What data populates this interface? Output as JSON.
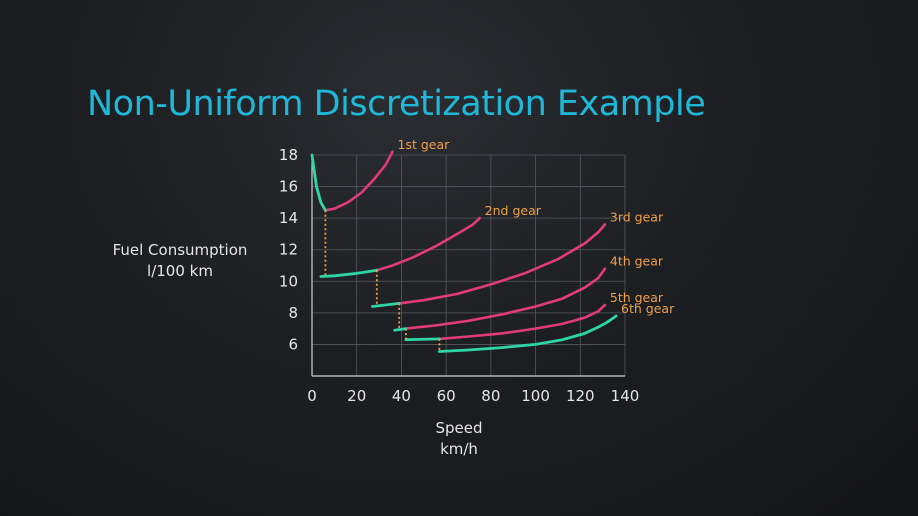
{
  "title": "Non-Uniform Discretization Example",
  "chart_data": {
    "type": "line",
    "ylabel": [
      "Fuel Consumption",
      "l/100 km"
    ],
    "xlabel": [
      "Speed",
      "km/h"
    ],
    "xlim": [
      0,
      140
    ],
    "ylim": [
      4,
      18
    ],
    "xticks": [
      0,
      20,
      40,
      60,
      80,
      100,
      120,
      140
    ],
    "yticks": [
      6,
      8,
      10,
      12,
      14,
      16,
      18
    ],
    "grid": true,
    "colors": {
      "active": "#e23c78",
      "optimal": "#2ed6a6",
      "marker": "#f0a04b",
      "grid": "#55595e"
    },
    "series": [
      {
        "name": "1st gear",
        "x": [
          0,
          2,
          4,
          6,
          10,
          16,
          22,
          28,
          33,
          36
        ],
        "y": [
          18.0,
          16.0,
          15.0,
          14.5,
          14.6,
          15.0,
          15.6,
          16.5,
          17.4,
          18.2
        ],
        "optimal_until": 6
      },
      {
        "name": "2nd gear",
        "x": [
          4,
          10,
          20,
          29,
          36,
          45,
          55,
          65,
          72,
          75
        ],
        "y": [
          10.3,
          10.35,
          10.5,
          10.7,
          11.0,
          11.5,
          12.2,
          13.0,
          13.6,
          14.0
        ],
        "optimal_until": 29
      },
      {
        "name": "3rd gear",
        "x": [
          27,
          39,
          50,
          65,
          80,
          95,
          110,
          122,
          128,
          131
        ],
        "y": [
          8.4,
          8.6,
          8.8,
          9.2,
          9.8,
          10.5,
          11.4,
          12.4,
          13.1,
          13.6
        ],
        "optimal_until": 39
      },
      {
        "name": "4th gear",
        "x": [
          37,
          42,
          55,
          70,
          85,
          100,
          112,
          122,
          128,
          131
        ],
        "y": [
          6.9,
          7.0,
          7.2,
          7.5,
          7.9,
          8.4,
          8.9,
          9.6,
          10.2,
          10.8
        ],
        "optimal_until": 42
      },
      {
        "name": "5th gear",
        "x": [
          42,
          57,
          70,
          85,
          100,
          112,
          122,
          128,
          131
        ],
        "y": [
          6.3,
          6.35,
          6.5,
          6.7,
          7.0,
          7.3,
          7.7,
          8.1,
          8.5
        ],
        "optimal_until": 57
      },
      {
        "name": "6th gear",
        "x": [
          57,
          70,
          85,
          100,
          112,
          122,
          128,
          132,
          136
        ],
        "y": [
          5.55,
          5.65,
          5.8,
          6.0,
          6.3,
          6.7,
          7.1,
          7.4,
          7.8
        ],
        "optimal_until": 136
      }
    ],
    "switch_points": [
      {
        "x": 6,
        "y_from": 14.5,
        "y_to": 10.35
      },
      {
        "x": 29,
        "y_from": 10.7,
        "y_to": 8.55
      },
      {
        "x": 39,
        "y_from": 8.6,
        "y_to": 7.0
      },
      {
        "x": 42,
        "y_from": 7.0,
        "y_to": 6.3
      },
      {
        "x": 57,
        "y_from": 6.35,
        "y_to": 5.55
      }
    ]
  }
}
